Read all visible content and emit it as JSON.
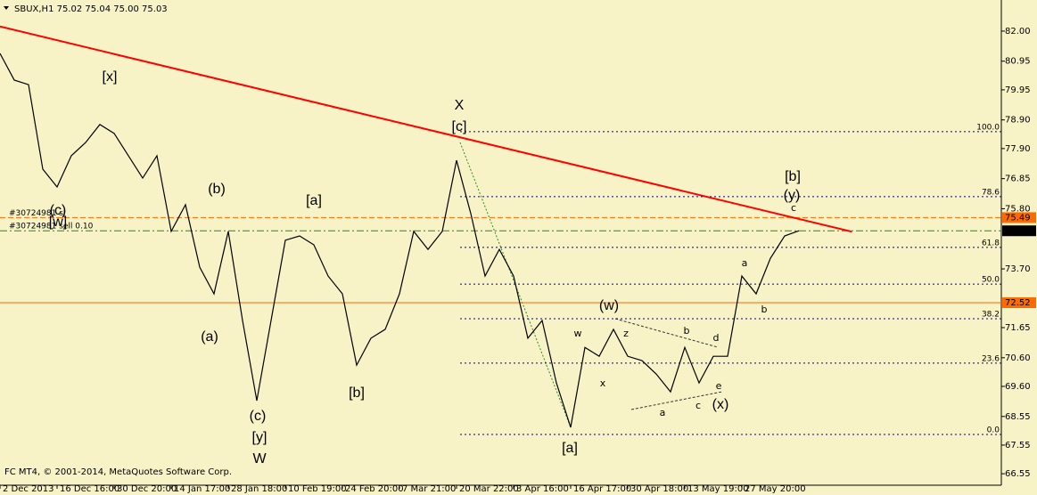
{
  "chart_data": {
    "type": "line",
    "title": "SBUX,H1  75.02 75.04 75.00 75.03",
    "footer": "FC MT4, © 2001-2014, MetaQuotes Software Corp.",
    "categories": [
      "2 Dec 2013",
      null,
      null,
      null,
      "16 Dec 16:00",
      null,
      null,
      null,
      "30 Dec 20:00",
      null,
      null,
      null,
      "14 Jan 17:00",
      null,
      null,
      null,
      "28 Jan 18:00",
      null,
      null,
      null,
      "10 Feb 19:00",
      null,
      null,
      null,
      "24 Feb 20:00",
      null,
      null,
      null,
      "7 Mar 21:00",
      null,
      null,
      null,
      "20 Mar 22:00",
      null,
      null,
      null,
      "3 Apr 16:00",
      null,
      null,
      null,
      "16 Apr 17:00",
      null,
      null,
      null,
      "30 Apr 18:00",
      null,
      null,
      null,
      "13 May 19:00",
      null,
      null,
      null,
      "27 May 20:00",
      null,
      null,
      null,
      null
    ],
    "series": [
      {
        "name": "SBUX",
        "color": "#000000",
        "values": [
          81.22,
          80.29,
          80.13,
          77.18,
          76.56,
          77.65,
          78.11,
          78.74,
          78.43,
          77.65,
          76.87,
          77.65,
          75.01,
          75.94,
          73.76,
          72.83,
          75.01,
          71.9,
          69.1,
          71.9,
          74.7,
          74.85,
          74.54,
          73.45,
          72.83,
          70.34,
          71.28,
          71.59,
          72.83,
          75.01,
          74.38,
          75.01,
          77.49,
          75.63,
          73.45,
          74.38,
          73.45,
          71.28,
          71.9,
          69.72,
          68.17,
          70.96,
          70.65,
          71.59,
          70.65,
          70.5,
          70.03,
          69.41,
          70.96,
          69.72,
          70.65,
          70.65,
          73.45,
          72.83,
          74.07,
          74.85,
          75.03
        ]
      }
    ],
    "ylim": [
      66.15,
      82.93
    ],
    "yticks": [
      {
        "value": 82.0,
        "label": "82.00"
      },
      {
        "value": 80.95,
        "label": "80.95"
      },
      {
        "value": 79.95,
        "label": "79.95"
      },
      {
        "value": 78.9,
        "label": "78.90"
      },
      {
        "value": 77.9,
        "label": "77.90"
      },
      {
        "value": 76.85,
        "label": "76.85"
      },
      {
        "value": 75.8,
        "label": "75.80"
      },
      {
        "value": 73.7,
        "label": "73.70"
      },
      {
        "value": 71.65,
        "label": "71.65"
      },
      {
        "value": 70.6,
        "label": "70.60"
      },
      {
        "value": 69.6,
        "label": "69.60"
      },
      {
        "value": 68.55,
        "label": "68.55"
      },
      {
        "value": 67.55,
        "label": "67.55"
      },
      {
        "value": 66.55,
        "label": "66.55"
      }
    ],
    "price_lines": [
      {
        "value": 75.49,
        "color": "#ff6a00",
        "style": "dashed",
        "label": "#30724981 sl"
      },
      {
        "value": 75.03,
        "color": "#228b22",
        "style": "dashdot",
        "label": "#30724981 sell 0.10"
      },
      {
        "value": 72.52,
        "color": "#ff6a00",
        "style": "solid"
      }
    ],
    "fib_levels": [
      {
        "value": 78.49,
        "label": "100.0"
      },
      {
        "value": 76.22,
        "label": "78.6"
      },
      {
        "value": 74.45,
        "label": "61.8"
      },
      {
        "value": 73.17,
        "label": "50.0"
      },
      {
        "value": 71.96,
        "label": "38.2"
      },
      {
        "value": 70.41,
        "label": "23.6"
      },
      {
        "value": 67.92,
        "label": "0.0"
      }
    ],
    "fib_color": "#00008b",
    "trendline": {
      "color": "#ff0000",
      "x": [
        0,
        59.7
      ],
      "y": [
        82.16,
        75.0
      ]
    },
    "annotations": [
      {
        "text": "[x]",
        "color": "#2e8b22"
      },
      {
        "text": "(b)",
        "color": "#1c1c7a"
      },
      {
        "text": "[a]",
        "color": "#2e8b22"
      },
      {
        "text": "X",
        "color": "#8b1a1a"
      },
      {
        "text": "[c]",
        "color": "#2e8b22"
      },
      {
        "text": "(c)",
        "color": "#1c1c7a"
      },
      {
        "text": "[w]",
        "color": "#2e8b22"
      },
      {
        "text": "(a)",
        "color": "#1c1c7a"
      },
      {
        "text": "(c)",
        "color": "#1c1c7a"
      },
      {
        "text": "[y]",
        "color": "#2e8b22"
      },
      {
        "text": "W",
        "color": "#8b1a1a"
      },
      {
        "text": "[b]",
        "color": "#2e8b22"
      },
      {
        "text": "[a]",
        "color": "#2e8b22"
      },
      {
        "text": "(w)",
        "color": "#1c1c7a"
      },
      {
        "text": "w",
        "color": "#8b1a1a"
      },
      {
        "text": "z",
        "color": "#8b1a1a"
      },
      {
        "text": "b",
        "color": "#8b1a1a"
      },
      {
        "text": "d",
        "color": "#8b1a1a"
      },
      {
        "text": "x",
        "color": "#8b1a1a"
      },
      {
        "text": "a",
        "color": "#8b1a1a"
      },
      {
        "text": "c",
        "color": "#8b1a1a"
      },
      {
        "text": "e",
        "color": "#8b1a1a"
      },
      {
        "text": "(x)",
        "color": "#1c1c7a"
      },
      {
        "text": "a",
        "color": "#8b1a1a"
      },
      {
        "text": "b",
        "color": "#8b1a1a"
      },
      {
        "text": "[b]",
        "color": "#2e8b22"
      },
      {
        "text": "(y)",
        "color": "#1c1c7a"
      },
      {
        "text": "c",
        "color": "#8b1a1a"
      }
    ]
  }
}
